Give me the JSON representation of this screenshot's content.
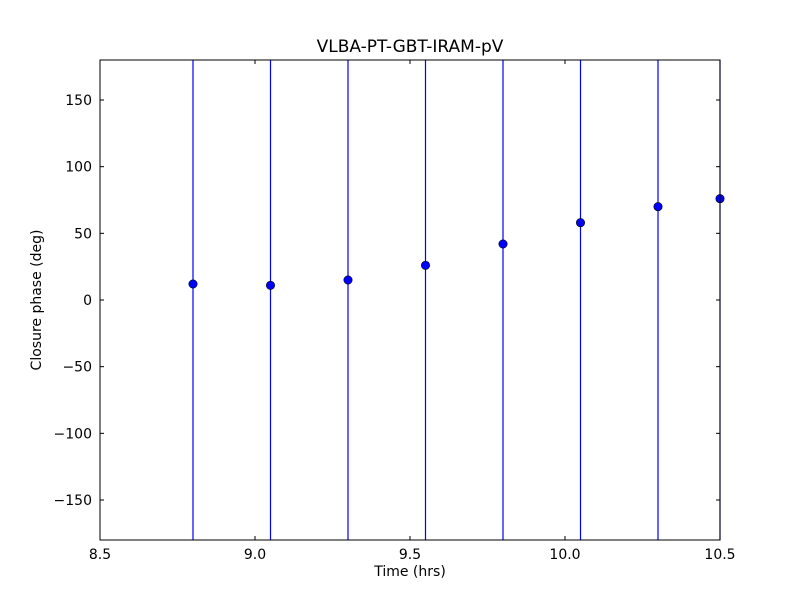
{
  "chart_data": {
    "type": "scatter",
    "title": "VLBA-PT-GBT-IRAM-pV",
    "xlabel": "Time (hrs)",
    "ylabel": "Closure phase (deg)",
    "xlim": [
      8.5,
      10.5
    ],
    "ylim": [
      -180,
      180
    ],
    "xticks": [
      8.5,
      9.0,
      9.5,
      10.0,
      10.5
    ],
    "xtick_labels": [
      "8.5",
      "9.0",
      "9.5",
      "10.0",
      "10.5"
    ],
    "yticks": [
      -150,
      -100,
      -50,
      0,
      50,
      100,
      150
    ],
    "ytick_labels": [
      "−150",
      "−100",
      "−50",
      "0",
      "50",
      "100",
      "150"
    ],
    "grid": false,
    "series": [
      {
        "color": "#0000ff",
        "marker": "circle",
        "error_bars": "full-range vertical (-180 to 180)",
        "points": [
          {
            "x": 8.8,
            "y": 12
          },
          {
            "x": 9.05,
            "y": 11
          },
          {
            "x": 9.3,
            "y": 15
          },
          {
            "x": 9.55,
            "y": 26
          },
          {
            "x": 9.8,
            "y": 42
          },
          {
            "x": 10.05,
            "y": 58
          },
          {
            "x": 10.3,
            "y": 70
          },
          {
            "x": 10.5,
            "y": 76
          }
        ]
      }
    ]
  }
}
